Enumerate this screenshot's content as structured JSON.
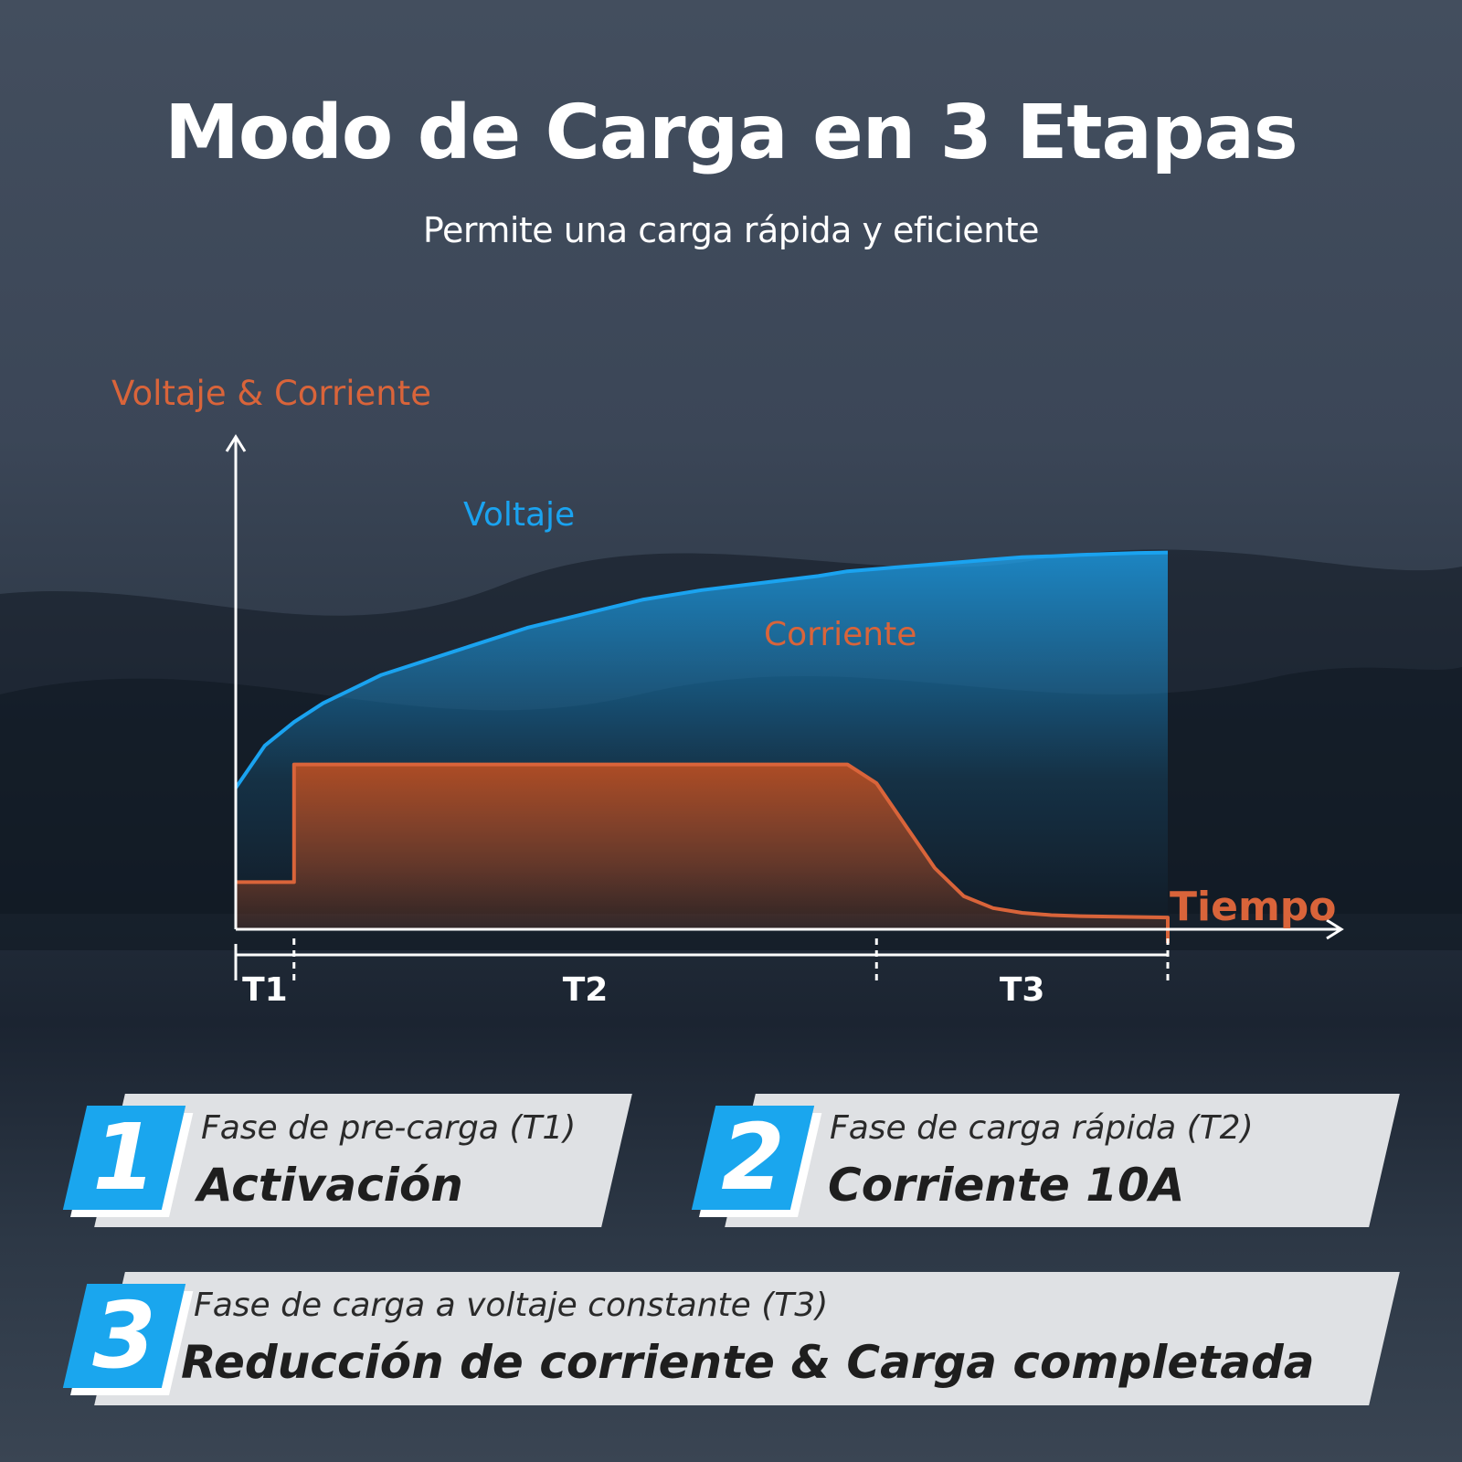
{
  "header": {
    "title": "Modo de Carga en 3 Etapas",
    "subtitle": "Permite una carga rápida y eficiente"
  },
  "chart_data": {
    "type": "line",
    "ylabel": "Voltaje & Corriente",
    "xlabel": "Tiempo",
    "x": [
      0,
      1,
      2,
      3,
      5,
      8,
      10,
      12,
      14,
      16,
      18,
      20,
      21,
      22,
      23,
      24,
      25,
      26,
      27,
      28,
      29,
      30,
      31,
      32
    ],
    "series": [
      {
        "name": "Voltaje",
        "color": "#1aa3f0",
        "values": [
          3.0,
          3.9,
          4.4,
          4.8,
          5.4,
          6.0,
          6.4,
          6.7,
          7.0,
          7.2,
          7.35,
          7.5,
          7.6,
          7.65,
          7.7,
          7.75,
          7.8,
          7.85,
          7.9,
          7.92,
          7.95,
          7.97,
          7.99,
          8.0
        ]
      },
      {
        "name": "Corriente",
        "color": "#d9643a",
        "values": [
          1.0,
          1.0,
          3.5,
          3.5,
          3.5,
          3.5,
          3.5,
          3.5,
          3.5,
          3.5,
          3.5,
          3.5,
          3.5,
          3.1,
          2.2,
          1.3,
          0.7,
          0.45,
          0.35,
          0.3,
          0.28,
          0.27,
          0.26,
          0.25
        ]
      }
    ],
    "phases": [
      {
        "label": "T1",
        "start": 0,
        "end": 2
      },
      {
        "label": "T2",
        "start": 2,
        "end": 22
      },
      {
        "label": "T3",
        "start": 22,
        "end": 32
      }
    ],
    "grid": false
  },
  "stages": [
    {
      "number": "1",
      "subtitle": "Fase de pre-carga (T1)",
      "title": "Activación"
    },
    {
      "number": "2",
      "subtitle": "Fase de carga rápida (T2)",
      "title": "Corriente 10A"
    },
    {
      "number": "3",
      "subtitle": "Fase de carga a voltaje constante (T3)",
      "title": "Reducción de corriente & Carga completada"
    }
  ]
}
